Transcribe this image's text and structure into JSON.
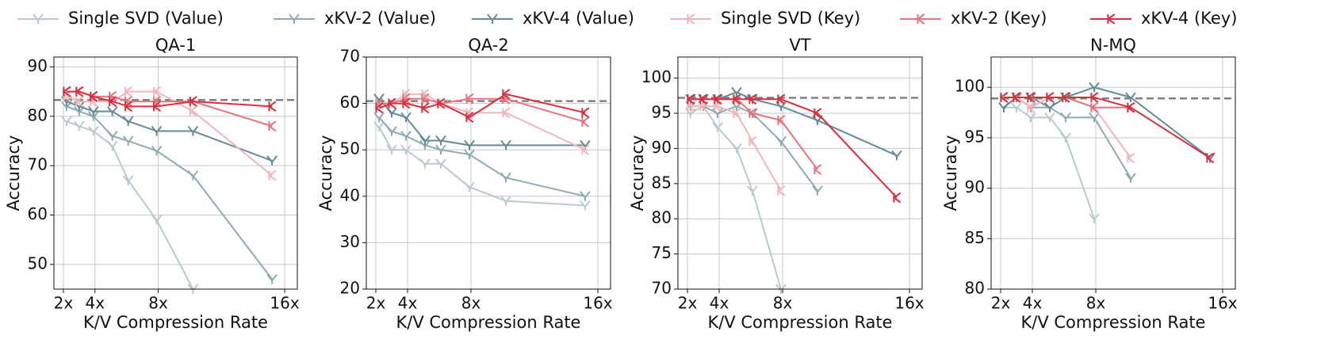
{
  "chart_data": [
    {
      "type": "line",
      "title": "QA-1",
      "xlabel": "K/V Compression Rate",
      "ylabel": "Accuracy",
      "x": [
        2.2,
        3,
        3.9,
        5.1,
        6.1,
        7.9,
        10.2,
        15.2
      ],
      "xlim": [
        1.4,
        16.8
      ],
      "xticks": [
        {
          "value": 2,
          "label": "2x"
        },
        {
          "value": 4,
          "label": "4x"
        },
        {
          "value": 8,
          "label": "8x"
        },
        {
          "value": 16,
          "label": "16x"
        }
      ],
      "ylim": [
        45,
        92
      ],
      "yticks": [
        50,
        60,
        70,
        80,
        90
      ],
      "grid": true,
      "reference": 83.3,
      "series": [
        {
          "name": "Single SVD (Value)",
          "color": "#b9c9cd",
          "marker": "value",
          "values": [
            79,
            78,
            77,
            74,
            67,
            59,
            45,
            null
          ]
        },
        {
          "name": "xKV-2 (Value)",
          "color": "#8eabb2",
          "marker": "value",
          "values": [
            82,
            81,
            80,
            76,
            75,
            73,
            68,
            47
          ]
        },
        {
          "name": "xKV-4 (Value)",
          "color": "#658b96",
          "marker": "value",
          "values": [
            83,
            82,
            81,
            81,
            79,
            77,
            77,
            71
          ]
        },
        {
          "name": "Single SVD (Key)",
          "color": "#f0b7bb",
          "marker": "key",
          "values": [
            84,
            83,
            83,
            83,
            85,
            85,
            81,
            68
          ]
        },
        {
          "name": "xKV-2 (Key)",
          "color": "#e6757e",
          "marker": "key",
          "values": [
            85,
            85,
            84,
            84,
            83,
            83,
            83,
            78
          ]
        },
        {
          "name": "xKV-4 (Key)",
          "color": "#d8303f",
          "marker": "key",
          "values": [
            85,
            85,
            84,
            83,
            82,
            82,
            83,
            82
          ]
        }
      ]
    },
    {
      "type": "line",
      "title": "QA-2",
      "xlabel": "K/V Compression Rate",
      "ylabel": "Accuracy",
      "x": [
        2.2,
        3,
        3.9,
        5.1,
        6.1,
        7.9,
        10.2,
        15.2
      ],
      "xlim": [
        1.4,
        16.8
      ],
      "xticks": [
        {
          "value": 2,
          "label": "2x"
        },
        {
          "value": 4,
          "label": "4x"
        },
        {
          "value": 8,
          "label": "8x"
        },
        {
          "value": 16,
          "label": "16x"
        }
      ],
      "ylim": [
        20,
        70
      ],
      "yticks": [
        20,
        30,
        40,
        50,
        60,
        70
      ],
      "grid": true,
      "reference": 60.5,
      "series": [
        {
          "name": "Single SVD (Value)",
          "color": "#b9c9cd",
          "marker": "value",
          "values": [
            55,
            50,
            50,
            47,
            47,
            42,
            39,
            38
          ]
        },
        {
          "name": "xKV-2 (Value)",
          "color": "#8eabb2",
          "marker": "value",
          "values": [
            57,
            54,
            53,
            51,
            50,
            49,
            44,
            40
          ]
        },
        {
          "name": "xKV-4 (Value)",
          "color": "#658b96",
          "marker": "value",
          "values": [
            61,
            58,
            57,
            52,
            52,
            51,
            51,
            51
          ]
        },
        {
          "name": "Single SVD (Key)",
          "color": "#f0b7bb",
          "marker": "key",
          "values": [
            59,
            60,
            62,
            62,
            60,
            58,
            58,
            50
          ]
        },
        {
          "name": "xKV-2 (Key)",
          "color": "#e6757e",
          "marker": "key",
          "values": [
            60,
            60,
            61,
            61,
            60,
            61,
            61,
            56
          ]
        },
        {
          "name": "xKV-4 (Key)",
          "color": "#d8303f",
          "marker": "key",
          "values": [
            59,
            60,
            60,
            59,
            60,
            57,
            62,
            58
          ]
        }
      ]
    },
    {
      "type": "line",
      "title": "VT",
      "xlabel": "K/V Compression Rate",
      "ylabel": "Accuracy",
      "x": [
        2.2,
        3,
        3.9,
        5.1,
        6.1,
        7.9,
        10.2,
        15.2
      ],
      "xlim": [
        1.4,
        16.8
      ],
      "xticks": [
        {
          "value": 2,
          "label": "2x"
        },
        {
          "value": 4,
          "label": "4x"
        },
        {
          "value": 8,
          "label": "8x"
        },
        {
          "value": 16,
          "label": "16x"
        }
      ],
      "ylim": [
        70,
        103
      ],
      "yticks": [
        70,
        75,
        80,
        85,
        90,
        95,
        100
      ],
      "grid": true,
      "reference": 97.2,
      "series": [
        {
          "name": "Single SVD (Value)",
          "color": "#b9c9cd",
          "marker": "value",
          "values": [
            95,
            96,
            93,
            90,
            84,
            70,
            null,
            null
          ]
        },
        {
          "name": "xKV-2 (Value)",
          "color": "#8eabb2",
          "marker": "value",
          "values": [
            96,
            96,
            95,
            96,
            95,
            91,
            84,
            null
          ]
        },
        {
          "name": "xKV-4 (Value)",
          "color": "#658b96",
          "marker": "value",
          "values": [
            97,
            97,
            97,
            98,
            97,
            96,
            94,
            89
          ]
        },
        {
          "name": "Single SVD (Key)",
          "color": "#f0b7bb",
          "marker": "key",
          "values": [
            96,
            96,
            96,
            95,
            91,
            84,
            null,
            null
          ]
        },
        {
          "name": "xKV-2 (Key)",
          "color": "#e6757e",
          "marker": "key",
          "values": [
            97,
            97,
            97,
            97,
            95,
            94,
            87,
            null
          ]
        },
        {
          "name": "xKV-4 (Key)",
          "color": "#d8303f",
          "marker": "key",
          "values": [
            97,
            97,
            97,
            97,
            97,
            97,
            95,
            83
          ]
        }
      ]
    },
    {
      "type": "line",
      "title": "N-MQ",
      "xlabel": "K/V Compression Rate",
      "ylabel": "Accuracy",
      "x": [
        2.2,
        3,
        3.9,
        5.1,
        6.1,
        7.9,
        10.2,
        15.2
      ],
      "xlim": [
        1.4,
        16.8
      ],
      "xticks": [
        {
          "value": 2,
          "label": "2x"
        },
        {
          "value": 4,
          "label": "4x"
        },
        {
          "value": 8,
          "label": "8x"
        },
        {
          "value": 16,
          "label": "16x"
        }
      ],
      "ylim": [
        80,
        103
      ],
      "yticks": [
        80,
        85,
        90,
        95,
        100
      ],
      "grid": true,
      "reference": 98.9,
      "series": [
        {
          "name": "Single SVD (Value)",
          "color": "#b9c9cd",
          "marker": "value",
          "values": [
            98,
            98,
            97,
            97,
            95,
            87,
            null,
            null
          ]
        },
        {
          "name": "xKV-2 (Value)",
          "color": "#8eabb2",
          "marker": "value",
          "values": [
            98,
            99,
            98,
            98,
            97,
            97,
            91,
            null
          ]
        },
        {
          "name": "xKV-4 (Value)",
          "color": "#658b96",
          "marker": "value",
          "values": [
            98,
            99,
            99,
            98,
            99,
            100,
            99,
            93
          ]
        },
        {
          "name": "Single SVD (Key)",
          "color": "#f0b7bb",
          "marker": "key",
          "values": [
            99,
            99,
            98,
            99,
            99,
            98,
            93,
            null
          ]
        },
        {
          "name": "xKV-2 (Key)",
          "color": "#e6757e",
          "marker": "key",
          "values": [
            99,
            99,
            99,
            99,
            99,
            98,
            98,
            null
          ]
        },
        {
          "name": "xKV-4 (Key)",
          "color": "#d8303f",
          "marker": "key",
          "values": [
            99,
            99,
            99,
            99,
            99,
            99,
            98,
            93
          ]
        }
      ]
    }
  ]
}
